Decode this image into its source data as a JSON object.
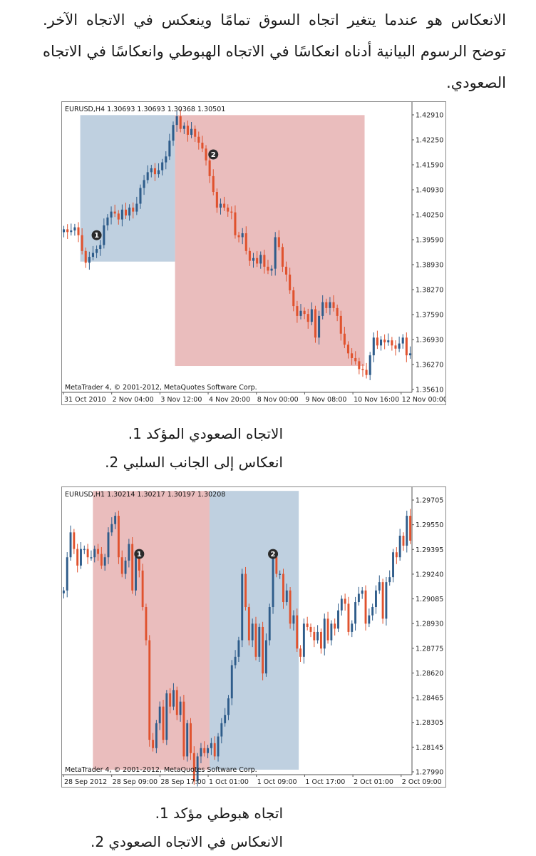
{
  "intro_text": "الانعكاس هو عندما يتغير اتجاه السوق تمامًا وينعكس في الاتجاه الآخر. توضح الرسوم البيانية أدناه انعكاسًا في الاتجاه الهبوطي وانعكاسًا في الاتجاه الصعودي.",
  "list1": [
    {
      "num": "1.",
      "text": "الاتجاه الصعودي المؤكد"
    },
    {
      "num": "2.",
      "text": "انعكاس إلى الجانب السلبي"
    }
  ],
  "list2": [
    {
      "num": "1.",
      "text": "اتجاه هبوطي مؤكد"
    },
    {
      "num": "2.",
      "text": "الانعكاس في الاتجاه الصعودي"
    }
  ],
  "colors": {
    "bull": "#2e5c8a",
    "bear": "#e0522e",
    "blue_zone": "#a9c0d6",
    "red_zone": "#e3a7a7"
  },
  "chart_data": [
    {
      "type": "candlestick",
      "header": "EURUSD,H4  1.30693 1.30693 1.30368 1.30501",
      "footer": "MetaTrader 4, © 2001-2012, MetaQuotes Software Corp.",
      "ylim": [
        1.3561,
        1.4291
      ],
      "yticks": [
        "1.42910",
        "1.42250",
        "1.41590",
        "1.40930",
        "1.40250",
        "1.39590",
        "1.38930",
        "1.38270",
        "1.37590",
        "1.36930",
        "1.36270",
        "1.35610"
      ],
      "xticks": [
        "31 Oct 2010",
        "2 Nov 04:00",
        "3 Nov 12:00",
        "4 Nov 20:00",
        "8 Nov 00:00",
        "9 Nov 08:00",
        "10 Nov 16:00",
        "12 Nov 00:00"
      ],
      "zones": [
        {
          "color": "blue",
          "from": 5,
          "to": 31,
          "low": 1.3893,
          "high": 1.4265
        },
        {
          "color": "red",
          "from": 31,
          "to": 83,
          "low": 1.3628,
          "high": 1.4265
        }
      ],
      "markers": [
        {
          "label": "1",
          "index": 9,
          "price": 1.396
        },
        {
          "label": "2",
          "index": 41,
          "price": 1.4165
        }
      ],
      "closes": [
        1.3975,
        1.3968,
        1.3972,
        1.398,
        1.396,
        1.392,
        1.389,
        1.3905,
        1.3915,
        1.3925,
        1.3935,
        1.3985,
        1.4005,
        1.402,
        1.4015,
        1.4,
        1.4025,
        1.401,
        1.403,
        1.402,
        1.404,
        1.408,
        1.41,
        1.412,
        1.413,
        1.4115,
        1.4125,
        1.4145,
        1.416,
        1.42,
        1.424,
        1.4262,
        1.423,
        1.4238,
        1.4215,
        1.423,
        1.421,
        1.4195,
        1.418,
        1.415,
        1.411,
        1.407,
        1.403,
        1.404,
        1.403,
        1.402,
        1.4018,
        1.396,
        1.3955,
        1.3965,
        1.392,
        1.3895,
        1.3902,
        1.3888,
        1.391,
        1.388,
        1.387,
        1.3875,
        1.3955,
        1.393,
        1.388,
        1.386,
        1.382,
        1.378,
        1.3755,
        1.3768,
        1.376,
        1.374,
        1.3772,
        1.37,
        1.3755,
        1.379,
        1.3775,
        1.379,
        1.3775,
        1.3755,
        1.371,
        1.3682,
        1.366,
        1.3648,
        1.364,
        1.362,
        1.3618,
        1.3605,
        1.3655,
        1.37,
        1.368,
        1.3695,
        1.3688,
        1.3693,
        1.368,
        1.3672,
        1.3685,
        1.37,
        1.3655,
        1.366
      ]
    },
    {
      "type": "candlestick",
      "header": "EURUSD,H1  1.30214 1.30217 1.30197 1.30208",
      "footer": "MetaTrader 4, © 2001-2012, MetaQuotes Software Corp.",
      "ylim": [
        1.2799,
        1.29705
      ],
      "yticks": [
        "1.29705",
        "1.29550",
        "1.29395",
        "1.29240",
        "1.29085",
        "1.28930",
        "1.28775",
        "1.28620",
        "1.28465",
        "1.28305",
        "1.28145",
        "1.27990"
      ],
      "xticks": [
        "28 Sep 2012",
        "28 Sep 09:00",
        "28 Sep 17:00",
        "1 Oct 01:00",
        "1 Oct 09:00",
        "1 Oct 17:00",
        "2 Oct 01:00",
        "2 Oct 09:00"
      ],
      "zones": [
        {
          "color": "red",
          "from": 9,
          "to": 43,
          "low": 1.2802,
          "high": 1.297
        },
        {
          "color": "blue",
          "from": 43,
          "to": 69,
          "low": 1.2802,
          "high": 1.297
        }
      ],
      "markers": [
        {
          "label": "1",
          "index": 22,
          "price": 1.2932
        },
        {
          "label": "2",
          "index": 61,
          "price": 1.2932
        }
      ],
      "closes": [
        1.291,
        1.293,
        1.2945,
        1.2935,
        1.2925,
        1.2935,
        1.2935,
        1.293,
        1.293,
        1.2935,
        1.2932,
        1.2925,
        1.293,
        1.2945,
        1.295,
        1.2955,
        1.293,
        1.292,
        1.2928,
        1.2938,
        1.291,
        1.293,
        1.2922,
        1.29,
        1.288,
        1.282,
        1.2815,
        1.283,
        1.284,
        1.282,
        1.2848,
        1.284,
        1.285,
        1.2835,
        1.2843,
        1.281,
        1.283,
        1.2812,
        1.2795,
        1.281,
        1.2815,
        1.2812,
        1.2815,
        1.2818,
        1.281,
        1.2822,
        1.283,
        1.2835,
        1.2845,
        1.2865,
        1.287,
        1.288,
        1.292,
        1.29,
        1.288,
        1.289,
        1.287,
        1.2888,
        1.286,
        1.288,
        1.29,
        1.293,
        1.292,
        1.292,
        1.2903,
        1.291,
        1.289,
        1.2895,
        1.2875,
        1.287,
        1.289,
        1.2888,
        1.2885,
        1.288,
        1.2885,
        1.2875,
        1.2893,
        1.288,
        1.289,
        1.2887,
        1.2898,
        1.2905,
        1.2902,
        1.2885,
        1.289,
        1.2903,
        1.2908,
        1.291,
        1.289,
        1.2895,
        1.29,
        1.291,
        1.2915,
        1.2893,
        1.2915,
        1.2918,
        1.2933,
        1.293,
        1.2943,
        1.2937,
        1.2955,
        1.294
      ]
    }
  ]
}
